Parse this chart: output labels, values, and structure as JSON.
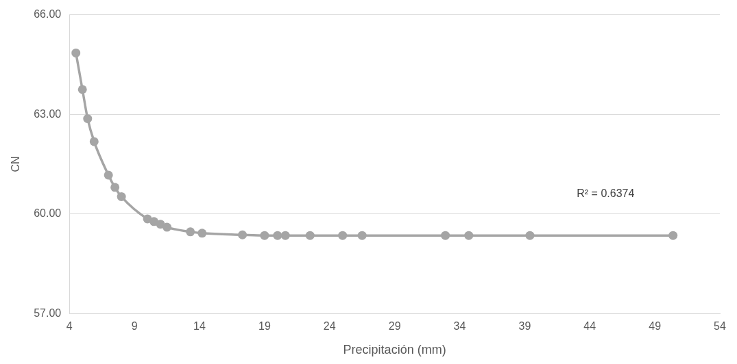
{
  "chart_data": {
    "type": "line",
    "xlabel": "Precipitación (mm)",
    "ylabel": "CN",
    "annotations": [
      "R² = 0.6374"
    ],
    "series": [
      {
        "color": "#a5a5a5",
        "x": [
          4.5,
          5.0,
          5.4,
          5.9,
          7.0,
          7.5,
          8.0,
          10.0,
          10.5,
          11.0,
          11.5,
          13.3,
          14.2,
          17.3,
          19.0,
          20.0,
          20.6,
          22.5,
          25.0,
          26.5,
          32.9,
          34.7,
          39.4,
          50.4
        ],
        "values": [
          64.85,
          63.75,
          62.87,
          62.18,
          61.17,
          60.8,
          60.52,
          59.85,
          59.77,
          59.69,
          59.6,
          59.46,
          59.42,
          59.37,
          59.35,
          59.35,
          59.35,
          59.35,
          59.35,
          59.35,
          59.35,
          59.35,
          59.35,
          59.35
        ]
      }
    ],
    "xlim": [
      4,
      54
    ],
    "xticks": [
      4,
      9,
      14,
      19,
      24,
      29,
      34,
      39,
      44,
      49,
      54
    ],
    "ylim": [
      57,
      66
    ],
    "yticks": [
      {
        "value": 57,
        "label": "57.00"
      },
      {
        "value": 60,
        "label": "60.00"
      },
      {
        "value": 63,
        "label": "63.00"
      },
      {
        "value": 66,
        "label": "66.00"
      }
    ],
    "grid": "y",
    "marker": "circle",
    "line_style": "solid",
    "legend": false
  }
}
